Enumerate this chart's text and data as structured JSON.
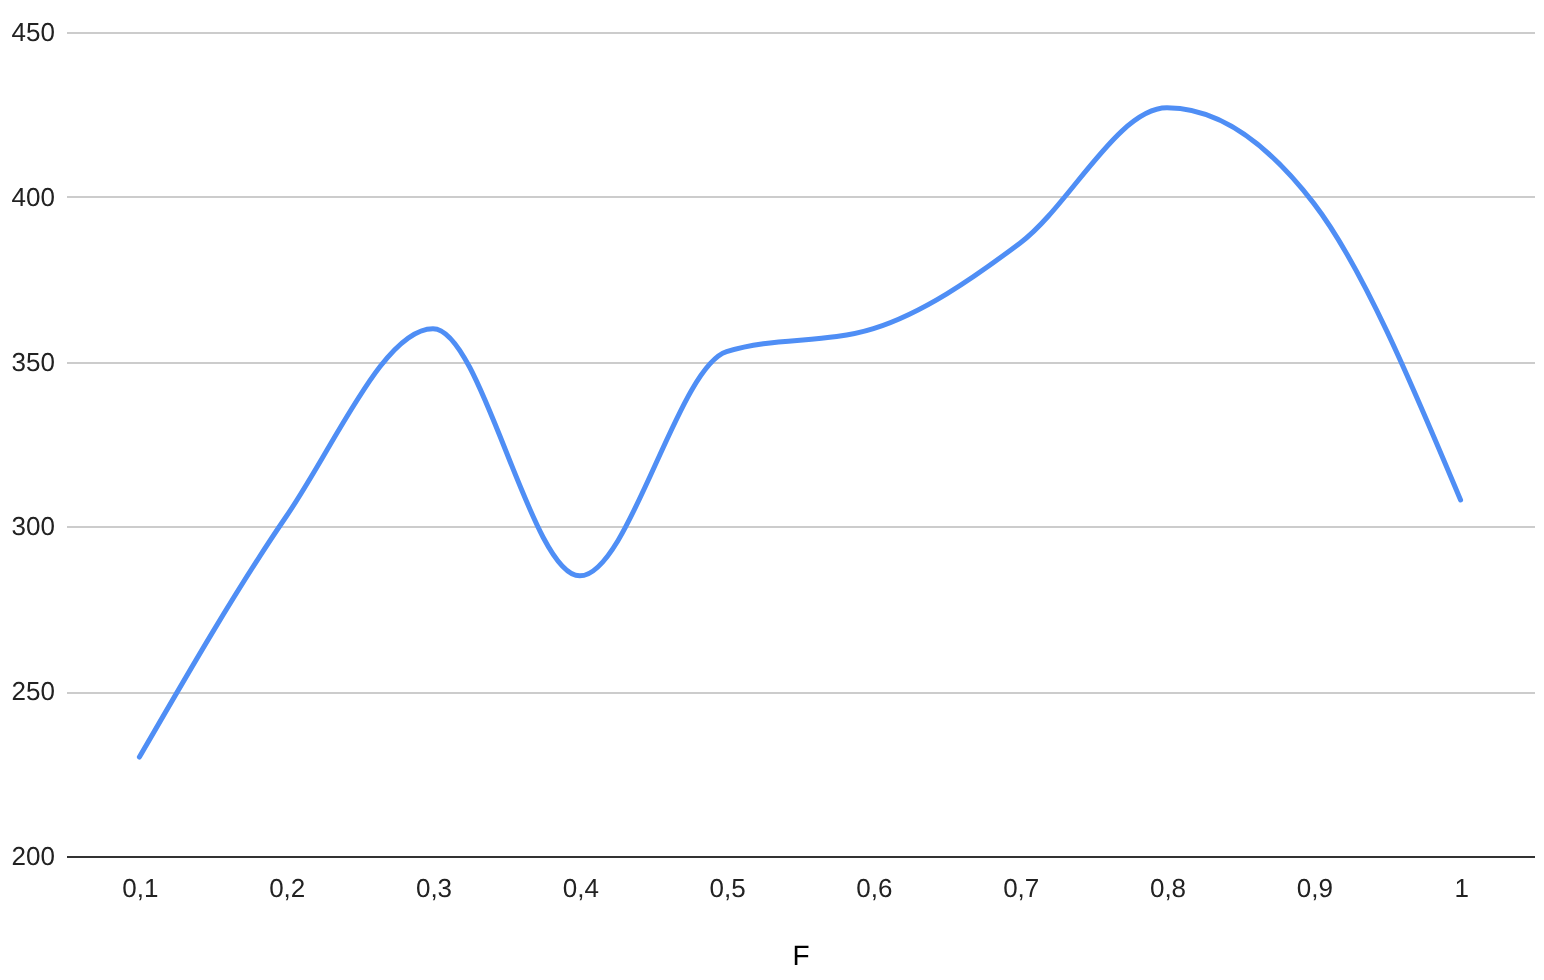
{
  "chart_data": {
    "type": "line",
    "xlabel": "F",
    "categories": [
      "0,1",
      "0,2",
      "0,3",
      "0,4",
      "0,5",
      "0,6",
      "0,7",
      "0,8",
      "0,9",
      "1"
    ],
    "series": [
      {
        "color": "#4f8ef5",
        "values": [
          230,
          303,
          360,
          285,
          353,
          360,
          386,
          427,
          398,
          308
        ]
      }
    ],
    "ylim": [
      200,
      450
    ],
    "yticks": [
      200,
      250,
      300,
      350,
      400,
      450
    ],
    "grid": "y",
    "marker": "none",
    "line_style": "solid"
  }
}
